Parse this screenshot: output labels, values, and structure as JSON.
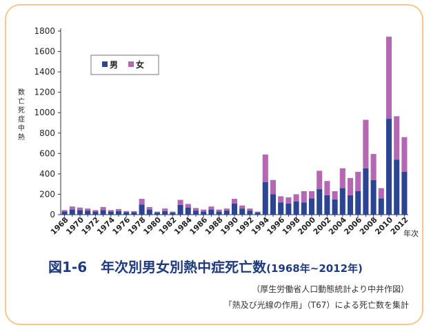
{
  "chart_data": {
    "type": "bar",
    "stacked": true,
    "ylabel": "数亡死症中熱",
    "xlabel": "年次",
    "ylim": [
      0,
      1800
    ],
    "yticks": [
      0,
      200,
      400,
      600,
      800,
      1000,
      1200,
      1400,
      1600,
      1800
    ],
    "grid": false,
    "legend_position": "top-left",
    "categories": [
      "1968",
      "1969",
      "1970",
      "1971",
      "1972",
      "1973",
      "1974",
      "1975",
      "1976",
      "1977",
      "1978",
      "1979",
      "1980",
      "1981",
      "1982",
      "1983",
      "1984",
      "1985",
      "1986",
      "1987",
      "1988",
      "1989",
      "1990",
      "1991",
      "1992",
      "1993",
      "1994",
      "1995",
      "1996",
      "1997",
      "1998",
      "1999",
      "2000",
      "2001",
      "2002",
      "2003",
      "2004",
      "2005",
      "2006",
      "2007",
      "2008",
      "2009",
      "2010",
      "2011",
      "2012"
    ],
    "tick_labels": [
      "1968",
      "1970",
      "1972",
      "1974",
      "1976",
      "1978",
      "1980",
      "1982",
      "1984",
      "1986",
      "1988",
      "1990",
      "1992",
      "1994",
      "1996",
      "1998",
      "2000",
      "2002",
      "2004",
      "2006",
      "2008",
      "2010",
      "2012"
    ],
    "series": [
      {
        "name": "男",
        "color": "#2b4593",
        "values": [
          30,
          50,
          45,
          40,
          30,
          45,
          30,
          35,
          25,
          25,
          100,
          50,
          20,
          35,
          20,
          95,
          70,
          40,
          30,
          50,
          30,
          40,
          110,
          60,
          40,
          20,
          320,
          200,
          120,
          110,
          130,
          120,
          160,
          250,
          190,
          150,
          260,
          190,
          230,
          455,
          340,
          160,
          940,
          540,
          420
        ]
      },
      {
        "name": "女",
        "color": "#b467b2",
        "values": [
          15,
          30,
          25,
          20,
          15,
          30,
          15,
          20,
          10,
          10,
          55,
          25,
          10,
          25,
          10,
          50,
          35,
          25,
          20,
          30,
          20,
          20,
          45,
          30,
          20,
          10,
          270,
          140,
          60,
          60,
          70,
          110,
          70,
          180,
          140,
          80,
          195,
          170,
          190,
          475,
          255,
          100,
          805,
          425,
          340
        ]
      }
    ]
  },
  "caption": {
    "title_main": "図1-6　年次別男女別熱中症死亡数",
    "title_range": "(1968年~2012年)",
    "source_1": "（厚生労働省人口動態統計より中井作図）",
    "source_2": "「熱及び光線の作用」（T67）による死亡数を集計"
  }
}
